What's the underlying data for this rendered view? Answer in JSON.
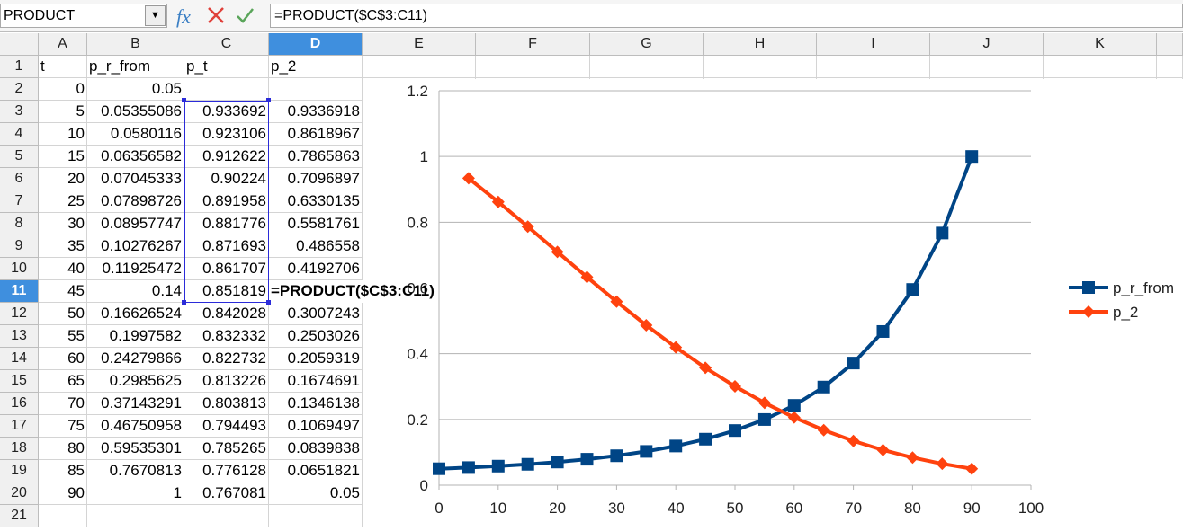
{
  "toolbar": {
    "name_box": "PRODUCT",
    "formula": "=PRODUCT($C$3:C11)"
  },
  "sheet": {
    "columns": [
      "A",
      "B",
      "C",
      "D",
      "E",
      "F",
      "G",
      "H",
      "I",
      "J",
      "K"
    ],
    "rows": [
      {
        "num": "1",
        "cells": [
          "t",
          "p_r_from",
          "p_t",
          "p_2"
        ]
      },
      {
        "num": "2",
        "cells": [
          "0",
          "0.05"
        ]
      },
      {
        "num": "3",
        "cells": [
          "5",
          "0.05355086",
          "0.933692",
          "0.9336918"
        ]
      },
      {
        "num": "4",
        "cells": [
          "10",
          "0.0580116",
          "0.923106",
          "0.8618967"
        ]
      },
      {
        "num": "5",
        "cells": [
          "15",
          "0.06356582",
          "0.912622",
          "0.7865863"
        ]
      },
      {
        "num": "6",
        "cells": [
          "20",
          "0.07045333",
          "0.90224",
          "0.7096897"
        ]
      },
      {
        "num": "7",
        "cells": [
          "25",
          "0.07898726",
          "0.891958",
          "0.6330135"
        ]
      },
      {
        "num": "8",
        "cells": [
          "30",
          "0.08957747",
          "0.881776",
          "0.5581761"
        ]
      },
      {
        "num": "9",
        "cells": [
          "35",
          "0.10276267",
          "0.871693",
          "0.486558"
        ]
      },
      {
        "num": "10",
        "cells": [
          "40",
          "0.11925472",
          "0.861707",
          "0.4192706"
        ]
      },
      {
        "num": "11",
        "cells": [
          "45",
          "0.14",
          "0.851819",
          "=PRODUCT($C$3:C11)"
        ]
      },
      {
        "num": "12",
        "cells": [
          "50",
          "0.16626524",
          "0.842028",
          "0.3007243"
        ]
      },
      {
        "num": "13",
        "cells": [
          "55",
          "0.1997582",
          "0.832332",
          "0.2503026"
        ]
      },
      {
        "num": "14",
        "cells": [
          "60",
          "0.24279866",
          "0.822732",
          "0.2059319"
        ]
      },
      {
        "num": "15",
        "cells": [
          "65",
          "0.2985625",
          "0.813226",
          "0.1674691"
        ]
      },
      {
        "num": "16",
        "cells": [
          "70",
          "0.37143291",
          "0.803813",
          "0.1346138"
        ]
      },
      {
        "num": "17",
        "cells": [
          "75",
          "0.46750958",
          "0.794493",
          "0.1069497"
        ]
      },
      {
        "num": "18",
        "cells": [
          "80",
          "0.59535301",
          "0.785265",
          "0.0839838"
        ]
      },
      {
        "num": "19",
        "cells": [
          "85",
          "0.7670813",
          "0.776128",
          "0.0651821"
        ]
      },
      {
        "num": "20",
        "cells": [
          "90",
          "1",
          "0.767081",
          "0.05"
        ]
      },
      {
        "num": "21",
        "cells": []
      }
    ]
  },
  "chart_data": {
    "type": "line",
    "xlim": [
      0,
      100
    ],
    "xticks": [
      0,
      10,
      20,
      30,
      40,
      50,
      60,
      70,
      80,
      90,
      100
    ],
    "ylim": [
      0,
      1.2
    ],
    "yticks": [
      0,
      0.2,
      0.4,
      0.6,
      0.8,
      1,
      1.2
    ],
    "grid": true,
    "legend": "right",
    "series": [
      {
        "name": "p_r_from",
        "color": "#004586",
        "marker": "square",
        "x": [
          0,
          5,
          10,
          15,
          20,
          25,
          30,
          35,
          40,
          45,
          50,
          55,
          60,
          65,
          70,
          75,
          80,
          85,
          90
        ],
        "values": [
          0.05,
          0.05355086,
          0.0580116,
          0.06356582,
          0.07045333,
          0.07898726,
          0.08957747,
          0.10276267,
          0.11925472,
          0.14,
          0.16626524,
          0.1997582,
          0.24279866,
          0.2985625,
          0.37143291,
          0.46750958,
          0.59535301,
          0.7670813,
          1
        ]
      },
      {
        "name": "p_2",
        "color": "#ff420e",
        "marker": "diamond",
        "x": [
          5,
          10,
          15,
          20,
          25,
          30,
          35,
          40,
          45,
          50,
          55,
          60,
          65,
          70,
          75,
          80,
          85,
          90
        ],
        "values": [
          0.9336918,
          0.8618967,
          0.7865863,
          0.7096897,
          0.6330135,
          0.5581761,
          0.486558,
          0.4192706,
          0.357,
          0.3007243,
          0.2503026,
          0.2059319,
          0.1674691,
          0.1346138,
          0.1069497,
          0.0839838,
          0.0651821,
          0.05
        ]
      }
    ]
  }
}
